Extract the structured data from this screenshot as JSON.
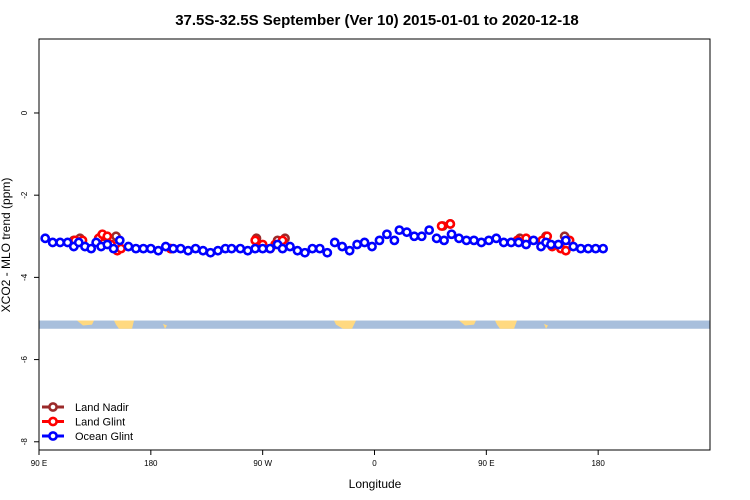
{
  "chart_data": {
    "type": "scatter",
    "title": "37.5S-32.5S September (Ver 10)   2015-01-01 to 2020-12-18",
    "xlabel": "Longitude",
    "ylabel": "XCO2 - MLO trend (ppm)",
    "xlim": [
      0,
      540
    ],
    "ylim": [
      -8.2,
      1.8
    ],
    "x_ticks": [
      {
        "value": 0,
        "label": "90 E"
      },
      {
        "value": 90,
        "label": "180"
      },
      {
        "value": 180,
        "label": "90 W"
      },
      {
        "value": 270,
        "label": "0"
      },
      {
        "value": 360,
        "label": "90 E"
      },
      {
        "value": 450,
        "label": "180"
      }
    ],
    "y_ticks": [
      {
        "value": 0,
        "label": "0"
      },
      {
        "value": -2,
        "label": "-2"
      },
      {
        "value": -4,
        "label": "-4"
      },
      {
        "value": -6,
        "label": "-6"
      },
      {
        "value": -8,
        "label": "-8"
      }
    ],
    "map_band": {
      "y_top": -5.05,
      "y_bottom": -5.25,
      "ocean_color": "#a8bfdc",
      "land_color": "#ffd980"
    },
    "legend": {
      "placement": "bottom-left"
    },
    "series": [
      {
        "name": "Land Nadir",
        "color": "#9b2a2a",
        "points": [
          [
            28,
            -3.1
          ],
          [
            33,
            -3.05
          ],
          [
            50,
            -3.0
          ],
          [
            53,
            -3.0
          ],
          [
            62,
            -3.0
          ],
          [
            106,
            -3.3
          ],
          [
            175,
            -3.05
          ],
          [
            192,
            -3.1
          ],
          [
            198,
            -3.05
          ],
          [
            325,
            -2.75
          ],
          [
            331,
            -2.7
          ],
          [
            387,
            -3.05
          ],
          [
            408,
            -3.0
          ],
          [
            423,
            -3.0
          ]
        ]
      },
      {
        "name": "Land Glint",
        "color": "#ff0000",
        "points": [
          [
            29,
            -3.1
          ],
          [
            35,
            -3.1
          ],
          [
            48,
            -3.05
          ],
          [
            51,
            -2.95
          ],
          [
            55,
            -3.0
          ],
          [
            58,
            -3.2
          ],
          [
            63,
            -3.35
          ],
          [
            66,
            -3.3
          ],
          [
            106,
            -3.3
          ],
          [
            174,
            -3.1
          ],
          [
            180,
            -3.2
          ],
          [
            186,
            -3.3
          ],
          [
            190,
            -3.2
          ],
          [
            196,
            -3.1
          ],
          [
            324,
            -2.75
          ],
          [
            331,
            -2.7
          ],
          [
            385,
            -3.1
          ],
          [
            392,
            -3.05
          ],
          [
            405,
            -3.1
          ],
          [
            409,
            -3.0
          ],
          [
            413,
            -3.25
          ],
          [
            420,
            -3.3
          ],
          [
            424,
            -3.35
          ],
          [
            427,
            -3.1
          ]
        ]
      },
      {
        "name": "Ocean Glint",
        "color": "#0000ff",
        "points": [
          [
            5,
            -3.05
          ],
          [
            11,
            -3.15
          ],
          [
            17,
            -3.15
          ],
          [
            23,
            -3.15
          ],
          [
            28,
            -3.25
          ],
          [
            32,
            -3.15
          ],
          [
            37,
            -3.25
          ],
          [
            42,
            -3.3
          ],
          [
            46,
            -3.15
          ],
          [
            50,
            -3.25
          ],
          [
            55,
            -3.2
          ],
          [
            60,
            -3.3
          ],
          [
            65,
            -3.1
          ],
          [
            72,
            -3.25
          ],
          [
            78,
            -3.3
          ],
          [
            84,
            -3.3
          ],
          [
            90,
            -3.3
          ],
          [
            96,
            -3.35
          ],
          [
            102,
            -3.25
          ],
          [
            108,
            -3.3
          ],
          [
            114,
            -3.3
          ],
          [
            120,
            -3.35
          ],
          [
            126,
            -3.3
          ],
          [
            132,
            -3.35
          ],
          [
            138,
            -3.4
          ],
          [
            144,
            -3.35
          ],
          [
            150,
            -3.3
          ],
          [
            155,
            -3.3
          ],
          [
            162,
            -3.3
          ],
          [
            168,
            -3.35
          ],
          [
            174,
            -3.3
          ],
          [
            180,
            -3.3
          ],
          [
            186,
            -3.3
          ],
          [
            192,
            -3.2
          ],
          [
            196,
            -3.3
          ],
          [
            202,
            -3.25
          ],
          [
            208,
            -3.35
          ],
          [
            214,
            -3.4
          ],
          [
            220,
            -3.3
          ],
          [
            226,
            -3.3
          ],
          [
            232,
            -3.4
          ],
          [
            238,
            -3.15
          ],
          [
            244,
            -3.25
          ],
          [
            250,
            -3.35
          ],
          [
            256,
            -3.2
          ],
          [
            262,
            -3.15
          ],
          [
            268,
            -3.25
          ],
          [
            274,
            -3.1
          ],
          [
            280,
            -2.95
          ],
          [
            286,
            -3.1
          ],
          [
            290,
            -2.85
          ],
          [
            296,
            -2.9
          ],
          [
            302,
            -3.0
          ],
          [
            308,
            -3.0
          ],
          [
            314,
            -2.85
          ],
          [
            320,
            -3.05
          ],
          [
            326,
            -3.1
          ],
          [
            332,
            -2.95
          ],
          [
            338,
            -3.05
          ],
          [
            344,
            -3.1
          ],
          [
            350,
            -3.1
          ],
          [
            356,
            -3.15
          ],
          [
            362,
            -3.1
          ],
          [
            368,
            -3.05
          ],
          [
            374,
            -3.15
          ],
          [
            380,
            -3.15
          ],
          [
            386,
            -3.15
          ],
          [
            392,
            -3.2
          ],
          [
            398,
            -3.1
          ],
          [
            404,
            -3.25
          ],
          [
            408,
            -3.15
          ],
          [
            412,
            -3.2
          ],
          [
            418,
            -3.2
          ],
          [
            424,
            -3.1
          ],
          [
            430,
            -3.25
          ],
          [
            436,
            -3.3
          ],
          [
            442,
            -3.3
          ],
          [
            448,
            -3.3
          ],
          [
            454,
            -3.3
          ]
        ]
      }
    ]
  }
}
